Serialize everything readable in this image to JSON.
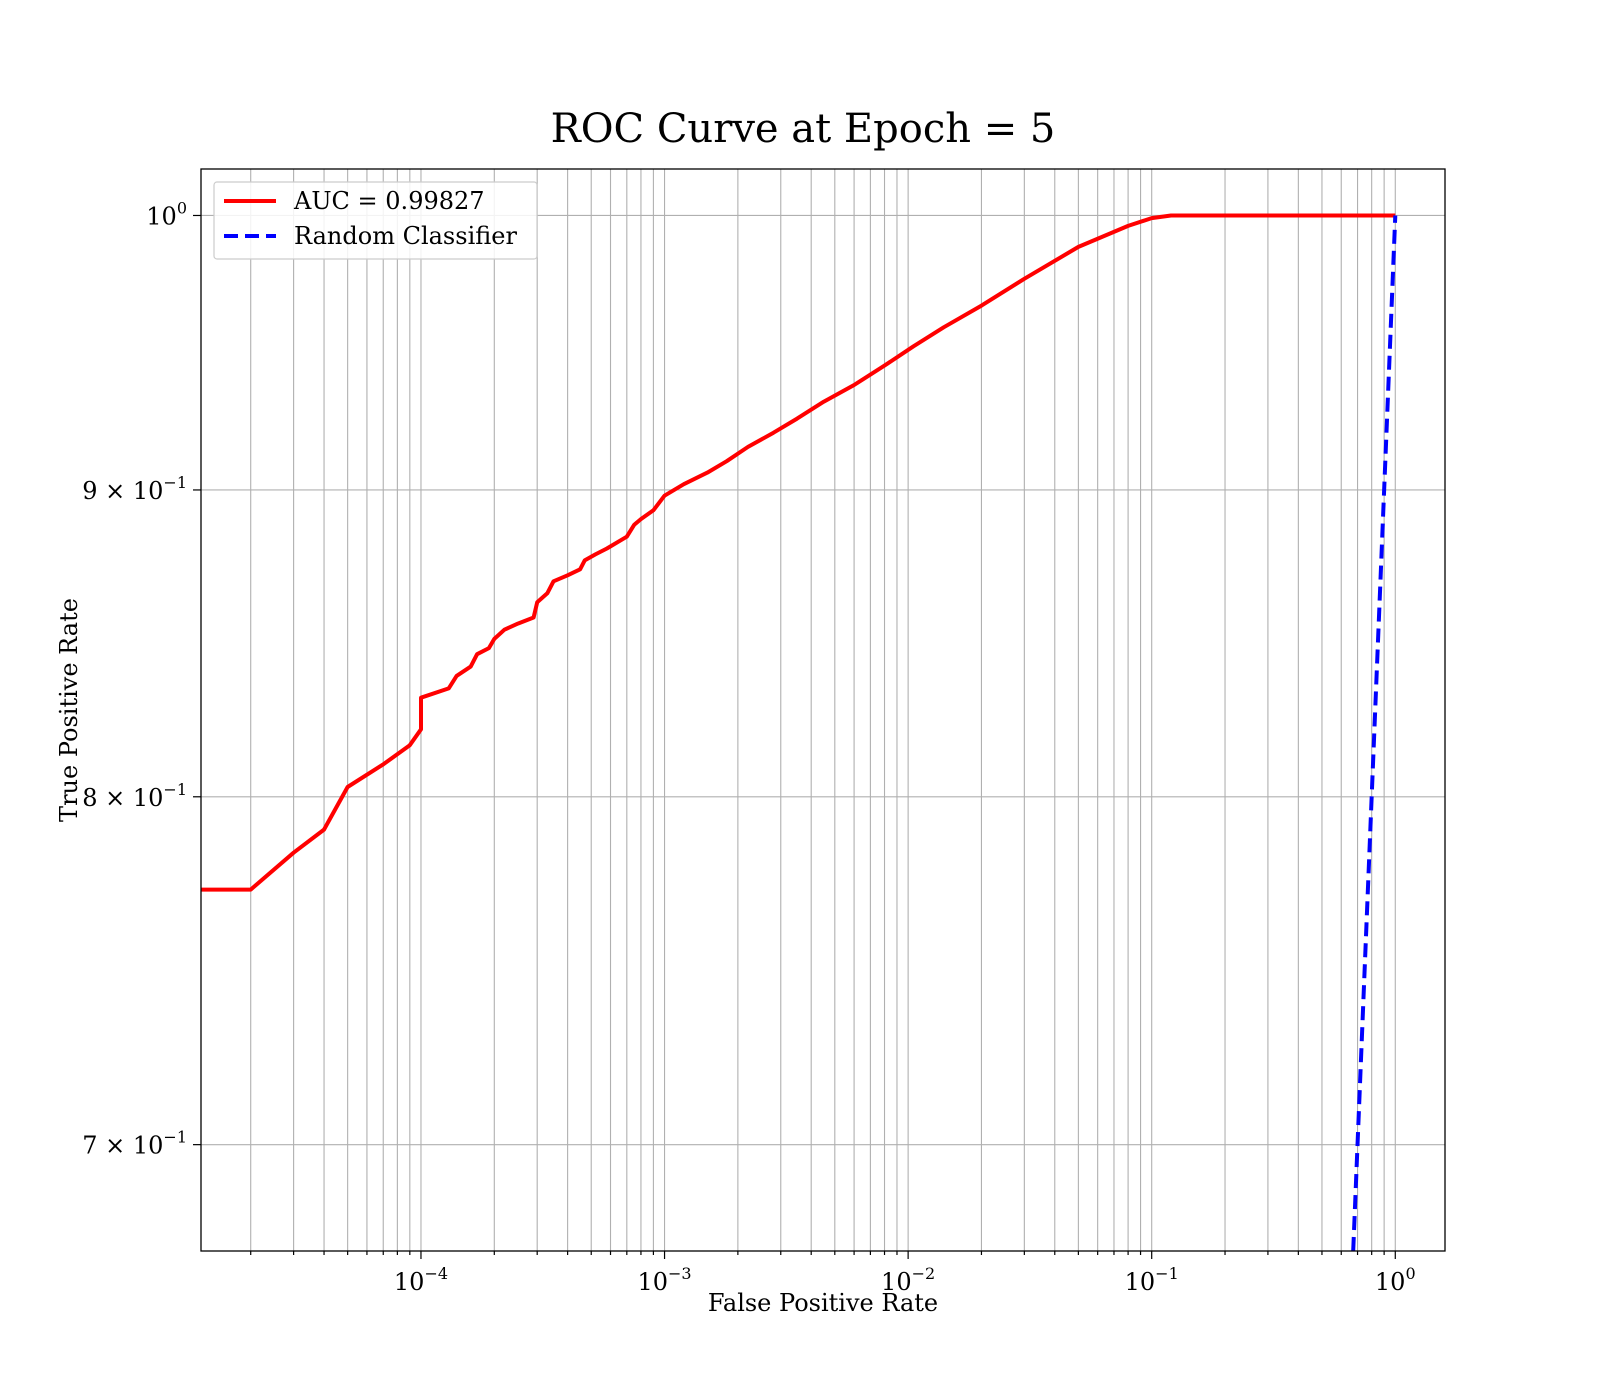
{
  "chart_data": {
    "type": "line",
    "title": "ROC Curve at Epoch = 5",
    "xlabel": "False Positive Rate",
    "ylabel": "True Positive Rate",
    "xscale": "log",
    "yscale": "log",
    "xlim": [
      1.25e-05,
      1.6
    ],
    "ylim": [
      0.672,
      1.018
    ],
    "grid": "both (major and minor)",
    "legend_position": "upper-left",
    "x_tick_labels": [
      {
        "value": 0.0001,
        "base": "10",
        "exp": "−4"
      },
      {
        "value": 0.001,
        "base": "10",
        "exp": "−3"
      },
      {
        "value": 0.01,
        "base": "10",
        "exp": "−2"
      },
      {
        "value": 0.1,
        "base": "10",
        "exp": "−1"
      },
      {
        "value": 1,
        "base": "10",
        "exp": "0"
      }
    ],
    "y_tick_labels": [
      {
        "value": 1.0,
        "mant": "",
        "base": "10",
        "exp": "0"
      },
      {
        "value": 0.9,
        "mant": "9 × ",
        "base": "10",
        "exp": "−1"
      },
      {
        "value": 0.8,
        "mant": "8 × ",
        "base": "10",
        "exp": "−1"
      },
      {
        "value": 0.7,
        "mant": "7 × ",
        "base": "10",
        "exp": "−1"
      }
    ],
    "series": [
      {
        "name": "AUC = 0.99827",
        "color": "#ff0000",
        "style": "solid",
        "x": [
          1.25e-05,
          2e-05,
          3e-05,
          4e-05,
          5e-05,
          7e-05,
          9e-05,
          0.0001,
          0.0001,
          0.00013,
          0.00014,
          0.00016,
          0.00017,
          0.00019,
          0.0002,
          0.00022,
          0.00025,
          0.00029,
          0.0003,
          0.00033,
          0.00035,
          0.0004,
          0.00045,
          0.00047,
          0.00052,
          0.00058,
          0.0007,
          0.00075,
          0.0008,
          0.0009,
          0.001,
          0.0012,
          0.0015,
          0.0018,
          0.0022,
          0.0028,
          0.0035,
          0.0045,
          0.006,
          0.008,
          0.0105,
          0.014,
          0.02,
          0.03,
          0.05,
          0.08,
          0.1,
          0.12,
          0.2,
          0.5,
          1.0
        ],
        "y": [
          0.772,
          0.772,
          0.783,
          0.79,
          0.803,
          0.81,
          0.816,
          0.821,
          0.831,
          0.834,
          0.838,
          0.841,
          0.845,
          0.847,
          0.85,
          0.853,
          0.855,
          0.857,
          0.862,
          0.865,
          0.869,
          0.871,
          0.873,
          0.876,
          0.878,
          0.88,
          0.884,
          0.888,
          0.89,
          0.893,
          0.898,
          0.902,
          0.906,
          0.91,
          0.915,
          0.92,
          0.925,
          0.931,
          0.937,
          0.944,
          0.951,
          0.958,
          0.966,
          0.976,
          0.988,
          0.996,
          0.999,
          1.0,
          1.0,
          1.0,
          1.0
        ]
      },
      {
        "name": "Random Classifier",
        "color": "#0000ff",
        "style": "dashed",
        "x": [
          0.672,
          1.0
        ],
        "y": [
          0.672,
          1.0
        ]
      }
    ]
  }
}
